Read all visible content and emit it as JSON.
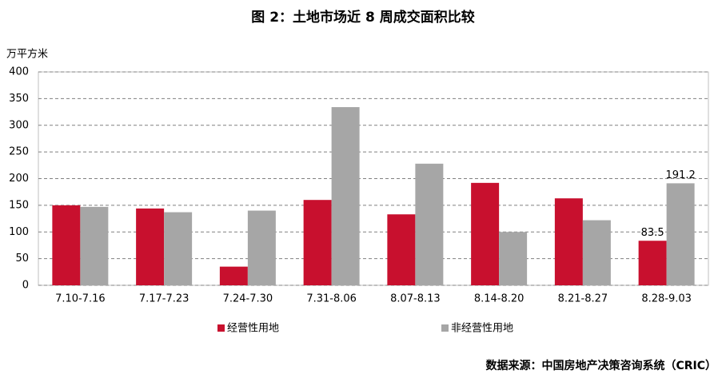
{
  "chart_data": {
    "type": "bar",
    "title": "图 2：土地市场近 8 周成交面积比较",
    "y_label": "万平方米",
    "source": "数据来源：中国房地产决策咨询系统（CRIC）",
    "categories": [
      "7.10-7.16",
      "7.17-7.23",
      "7.24-7.30",
      "7.31-8.06",
      "8.07-8.13",
      "8.14-8.20",
      "8.21-8.27",
      "8.28-9.03"
    ],
    "series": [
      {
        "name": "经营性用地",
        "color": "#c8102e",
        "values": [
          150,
          144,
          35,
          160,
          133,
          192,
          163,
          83.5
        ]
      },
      {
        "name": "非经营性用地",
        "color": "#a6a6a6",
        "values": [
          147,
          137,
          140,
          334,
          228,
          100,
          122,
          191.2
        ]
      }
    ],
    "data_labels": "last",
    "ylim": [
      0,
      400
    ],
    "yticks": [
      0,
      50,
      100,
      150,
      200,
      250,
      300,
      350,
      400
    ],
    "grid": true,
    "legend": "bottom"
  }
}
